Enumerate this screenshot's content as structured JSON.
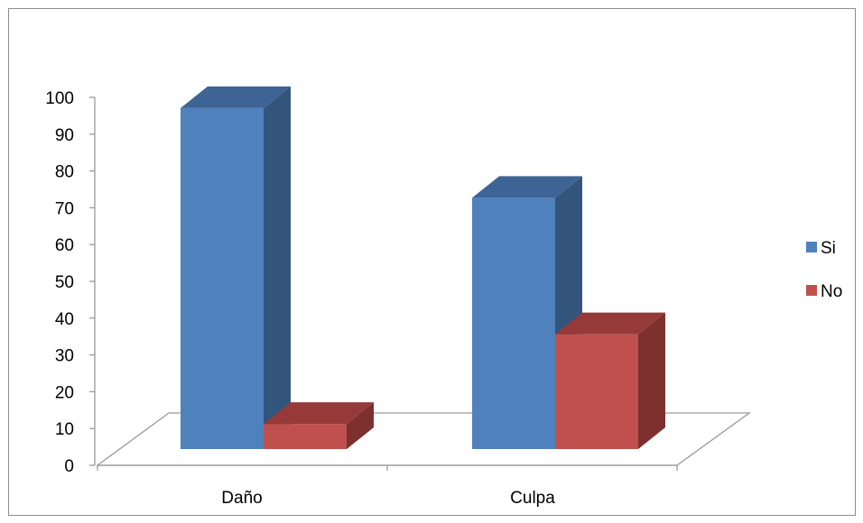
{
  "chart_data": {
    "type": "bar",
    "categories": [
      "Daño",
      "Culpa"
    ],
    "series": [
      {
        "name": "Si",
        "values": [
          95,
          70
        ],
        "color": "#4f81bd",
        "side_color": "#34557b",
        "top_color": "#3d6494"
      },
      {
        "name": "No",
        "values": [
          7,
          32
        ],
        "color": "#c0504d",
        "side_color": "#7d302e",
        "top_color": "#953a38"
      }
    ],
    "yticks": [
      "0",
      "10",
      "20",
      "30",
      "40",
      "50",
      "60",
      "70",
      "80",
      "90",
      "100"
    ],
    "ylim": [
      0,
      100
    ],
    "legend_position": "right",
    "three_d": true,
    "grid": false
  }
}
